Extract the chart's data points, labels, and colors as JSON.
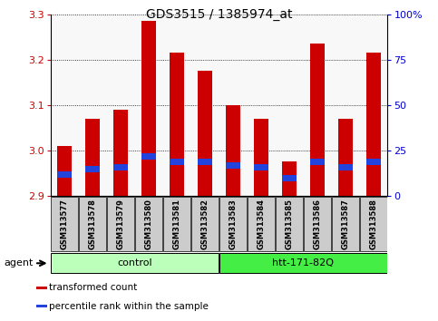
{
  "title": "GDS3515 / 1385974_at",
  "samples": [
    "GSM313577",
    "GSM313578",
    "GSM313579",
    "GSM313580",
    "GSM313581",
    "GSM313582",
    "GSM313583",
    "GSM313584",
    "GSM313585",
    "GSM313586",
    "GSM313587",
    "GSM313588"
  ],
  "transformed_count": [
    3.01,
    3.07,
    3.09,
    3.285,
    3.215,
    3.175,
    3.1,
    3.07,
    2.975,
    3.235,
    3.07,
    3.215
  ],
  "percentile_rank": [
    10,
    13,
    14,
    20,
    17,
    17,
    15,
    14,
    8,
    17,
    14,
    17
  ],
  "ylim_left": [
    2.9,
    3.3
  ],
  "ylim_right": [
    0,
    100
  ],
  "baseline": 2.9,
  "yticks_left": [
    2.9,
    3.0,
    3.1,
    3.2,
    3.3
  ],
  "yticks_right": [
    0,
    25,
    50,
    75,
    100
  ],
  "ytick_labels_right": [
    "0",
    "25",
    "50",
    "75",
    "100%"
  ],
  "groups": [
    {
      "label": "control",
      "start": 0,
      "end": 6,
      "color": "#bbffbb"
    },
    {
      "label": "htt-171-82Q",
      "start": 6,
      "end": 12,
      "color": "#44ee44"
    }
  ],
  "bar_color": "#cc0000",
  "blue_color": "#2244dd",
  "bar_width": 0.5,
  "agent_label": "agent",
  "legend_items": [
    {
      "color": "#cc0000",
      "label": "transformed count"
    },
    {
      "color": "#2244dd",
      "label": "percentile rank within the sample"
    }
  ],
  "tick_color_left": "#cc0000",
  "tick_color_right": "#0000cc",
  "sample_box_color": "#cccccc",
  "plot_bg": "#f8f8f8",
  "title_fontsize": 10,
  "bar_label_fontsize": 6,
  "legend_fontsize": 7.5,
  "group_fontsize": 8,
  "agent_fontsize": 8
}
